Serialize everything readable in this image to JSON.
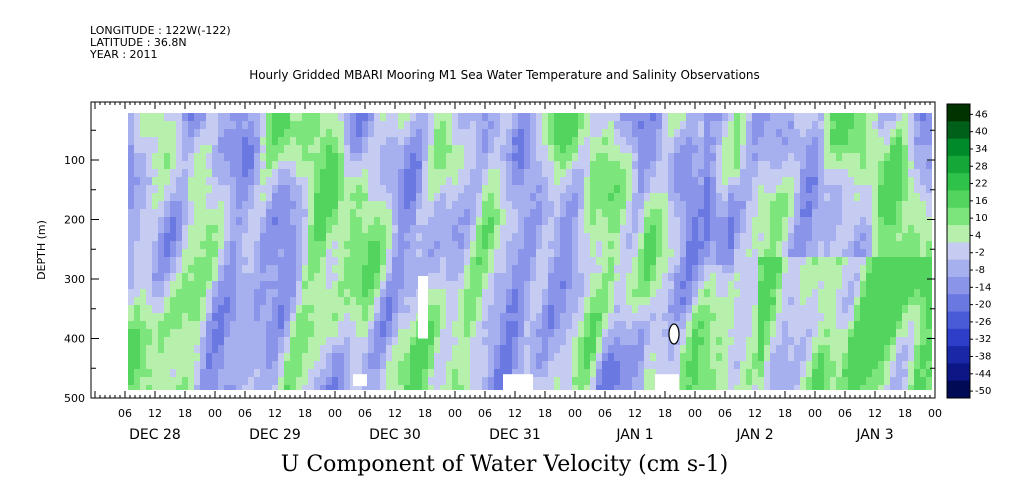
{
  "header": {
    "longitude": "LONGITUDE : 122W(-122)",
    "latitude": "LATITUDE : 36.8N",
    "year": "YEAR : 2011",
    "title": "Hourly Gridded MBARI Mooring M1 Sea Water Temperature and Salinity Observations"
  },
  "chart_data": {
    "type": "heatmap",
    "title": "Hourly Gridded MBARI Mooring M1 Sea Water Temperature and Salinity Observations",
    "xlabel": "U Component of Water Velocity (cm s-1)",
    "ylabel": "DEPTH (m)",
    "ylim": [
      500,
      0
    ],
    "y_ticks": [
      100,
      200,
      300,
      400,
      500
    ],
    "y_tick_labels": [
      "100",
      "200",
      "300",
      "400",
      "500"
    ],
    "x_hour_ticks": [
      "06",
      "12",
      "18",
      "00",
      "06",
      "12",
      "18",
      "00",
      "06",
      "12",
      "18",
      "00",
      "06",
      "12",
      "18",
      "00",
      "06",
      "12",
      "18",
      "00",
      "06",
      "12",
      "18",
      "00",
      "06",
      "12",
      "18",
      "00"
    ],
    "x_day_labels": [
      "DEC 28",
      "DEC 29",
      "DEC 30",
      "DEC 31",
      "JAN  1",
      "JAN  2",
      "JAN  3"
    ],
    "colorbar": {
      "labels": [
        "46",
        "40",
        "34",
        "28",
        "22",
        "16",
        "10",
        "4",
        "-2",
        "-8",
        "-14",
        "-20",
        "-26",
        "-32",
        "-38",
        "-44",
        "-50"
      ],
      "colors": [
        "#003300",
        "#00601a",
        "#008a2a",
        "#15a838",
        "#2fc24a",
        "#52d45f",
        "#7ce57c",
        "#b6f0ac",
        "#c6cbf2",
        "#a7b0ee",
        "#8a95ea",
        "#6a79e2",
        "#4a5bd8",
        "#2e3ec8",
        "#1a28a8",
        "#0c1684",
        "#000a55"
      ]
    },
    "gaps": [
      {
        "time": "DEC 30 10:00",
        "depth_from": 460,
        "depth_to": 480
      },
      {
        "time": "DEC 30 20:00",
        "depth_from": 295,
        "depth_to": 400
      },
      {
        "time": "DEC 31 12:00",
        "depth_from": 460,
        "depth_to": 490
      },
      {
        "time": "JAN 1 19:00",
        "depth_from": 460,
        "depth_to": 490
      },
      {
        "time": "JAN 1 21:00",
        "depth_from": 380,
        "depth_to": 410
      }
    ],
    "notes": "Green = eastward (positive) U velocity, blue/purple = westward (negative); strong positive band from JAN 2 ~14:00 onward at depths 250-490 m."
  }
}
